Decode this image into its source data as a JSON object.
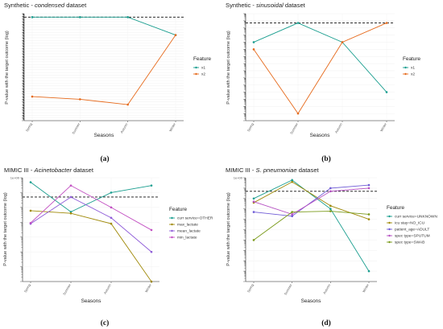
{
  "chart_data": [
    {
      "type": "line",
      "title_prefix": "Synthetic - ",
      "title_emph": "condensed",
      "title_suffix": " dataset",
      "xlabel": "Seasons",
      "ylabel": "P-value with the target outcome (log)",
      "categories": [
        "Spring",
        "Summer",
        "Autumn",
        "Winter"
      ],
      "yscale": "log",
      "ylim": [
        1e-40,
        1
      ],
      "threshold": 0.05,
      "ytick_labels": [],
      "legend_title": "Feature",
      "legend_position": "right",
      "caption": "(a)",
      "series": [
        {
          "name": "x1",
          "color": "#1a9e8f",
          "values": [
            0.05,
            0.05,
            0.05,
            1e-08
          ]
        },
        {
          "name": "x2",
          "color": "#e66a1c",
          "values": [
            1e-31,
            1e-32,
            1e-34,
            1e-08
          ]
        }
      ]
    },
    {
      "type": "line",
      "title_prefix": "Synthetic - ",
      "title_emph": "sinusoidal",
      "title_suffix": " dataset",
      "xlabel": "Seasons",
      "ylabel": "P-value with the target outcome (log)",
      "categories": [
        "Spring",
        "Summer",
        "Autumn",
        "Winter"
      ],
      "yscale": "log",
      "ylim": [
        1e-15,
        1
      ],
      "threshold": 0.05,
      "ytick_labels": [],
      "legend_title": "Feature",
      "legend_position": "right",
      "caption": "(b)",
      "series": [
        {
          "name": "x1",
          "color": "#1a9e8f",
          "values": [
            0.0001,
            0.05,
            0.0001,
            1e-11
          ]
        },
        {
          "name": "x2",
          "color": "#e66a1c",
          "values": [
            1e-05,
            1e-14,
            0.0001,
            0.05
          ]
        }
      ]
    },
    {
      "type": "line",
      "title_prefix": "MIMIC III - ",
      "title_emph": "Acinetobacter",
      "title_suffix": " dataset",
      "xlabel": "Seasons",
      "ylabel": "P-value with the target outcome (log)",
      "categories": [
        "Spring",
        "Summer",
        "Autumn",
        "Winter"
      ],
      "yscale": "log",
      "ylim": [
        1e-07,
        1
      ],
      "threshold": 0.05,
      "ytick_labels": [
        "1e+00"
      ],
      "legend_title": "Feature",
      "legend_position": "right",
      "caption": "(c)",
      "series": [
        {
          "name": "curr service=OTHER",
          "color": "#1a9e8f",
          "values": [
            0.5,
            0.005,
            0.1,
            0.3
          ]
        },
        {
          "name": "max_lactate",
          "color": "#a08a0a",
          "values": [
            0.006,
            0.004,
            0.0008,
            1e-07
          ]
        },
        {
          "name": "mean_lactate",
          "color": "#8e5bd8",
          "values": [
            0.0008,
            0.05,
            0.002,
            1e-05
          ]
        },
        {
          "name": "min_lactate",
          "color": "#c24fc2",
          "values": [
            0.0009,
            0.3,
            0.01,
            0.0003
          ]
        }
      ]
    },
    {
      "type": "line",
      "title_prefix": "MIMIC III - ",
      "title_emph": "S. pneumoniae",
      "title_suffix": " dataset",
      "xlabel": "Seasons",
      "ylabel": "P-value with the target outcome (log)",
      "categories": [
        "Spring",
        "Summer",
        "Autumn",
        "Winter"
      ],
      "yscale": "log",
      "ylim": [
        1e-10,
        1
      ],
      "threshold": 0.05,
      "ytick_labels": [
        "1e+00"
      ],
      "legend_title": "Feature",
      "legend_position": "right",
      "caption": "(d)",
      "series": [
        {
          "name": "curr service=UNKNOWN",
          "color": "#1a9e8f",
          "values": [
            0.01,
            0.6,
            0.001,
            1e-09
          ]
        },
        {
          "name": "icu stay=NO_ICU",
          "color": "#a08a0a",
          "values": [
            0.004,
            0.4,
            0.002,
            0.0001
          ]
        },
        {
          "name": "patient_age=ADULT",
          "color": "#6f5bd6",
          "values": [
            0.0005,
            0.0002,
            0.1,
            0.2
          ]
        },
        {
          "name": "spec type=SPUTUM",
          "color": "#b54fc2",
          "values": [
            0.005,
            0.0003,
            0.05,
            0.1
          ]
        },
        {
          "name": "spec type=SWAB",
          "color": "#7a9a1a",
          "values": [
            1e-06,
            0.0005,
            0.0006,
            0.0003
          ]
        }
      ]
    }
  ]
}
